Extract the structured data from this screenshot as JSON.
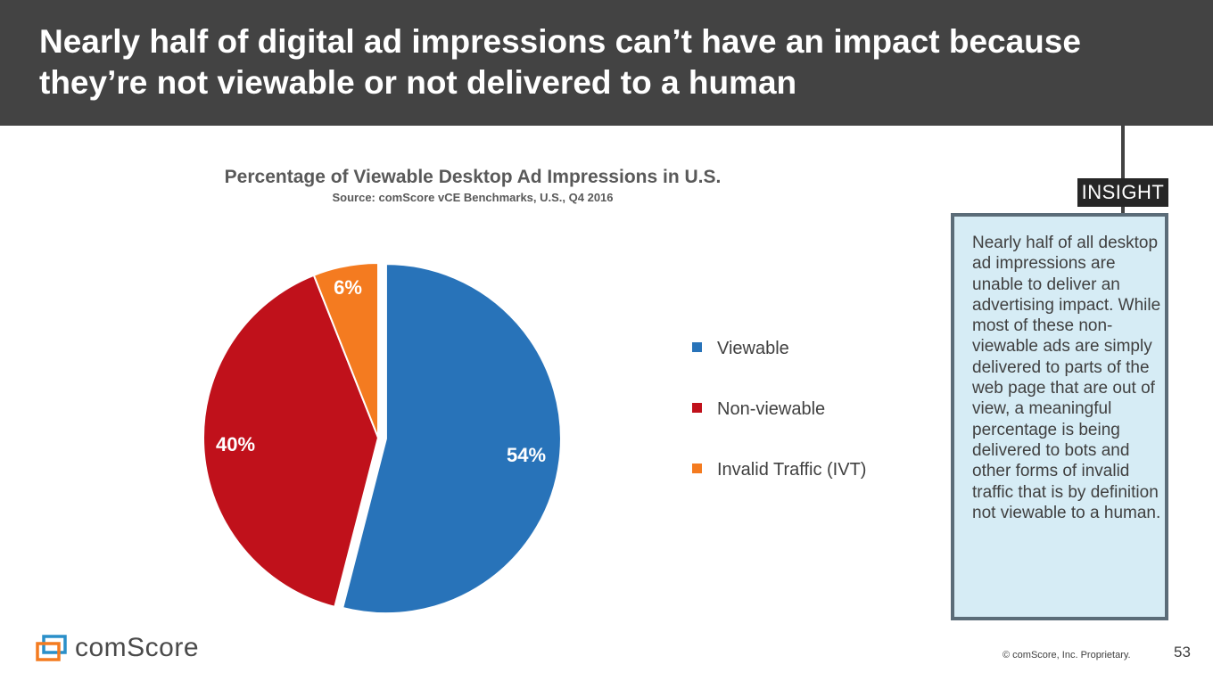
{
  "header": {
    "title": "Nearly half of digital ad impressions can’t have an impact because they’re not viewable or not delivered to a human"
  },
  "chart_data": {
    "type": "pie",
    "title": "Percentage of Viewable Desktop Ad Impressions in U.S.",
    "subtitle": "Source: comScore vCE Benchmarks, U.S., Q4 2016",
    "categories": [
      "Viewable",
      "Non-viewable",
      "Invalid Traffic (IVT)"
    ],
    "values": [
      54,
      40,
      6
    ],
    "labels": [
      "54%",
      "40%",
      "6%"
    ],
    "colors": [
      "#2873b9",
      "#c0111b",
      "#f47b20"
    ],
    "exploded": "Viewable",
    "legend_position": "right"
  },
  "insight": {
    "tag": "INSIGHT",
    "text": "Nearly half of all desktop ad impressions are unable to deliver an advertising impact. While most of these non-viewable ads are simply delivered to parts of the web page that are out of view, a meaningful percentage is being delivered to bots and other forms of invalid traffic that is by definition not viewable to a human."
  },
  "footer": {
    "logo_text": "comScore",
    "logo_icon": "comscore-logo-icon",
    "copyright": "© comScore, Inc. Proprietary.",
    "page_number": "53"
  }
}
